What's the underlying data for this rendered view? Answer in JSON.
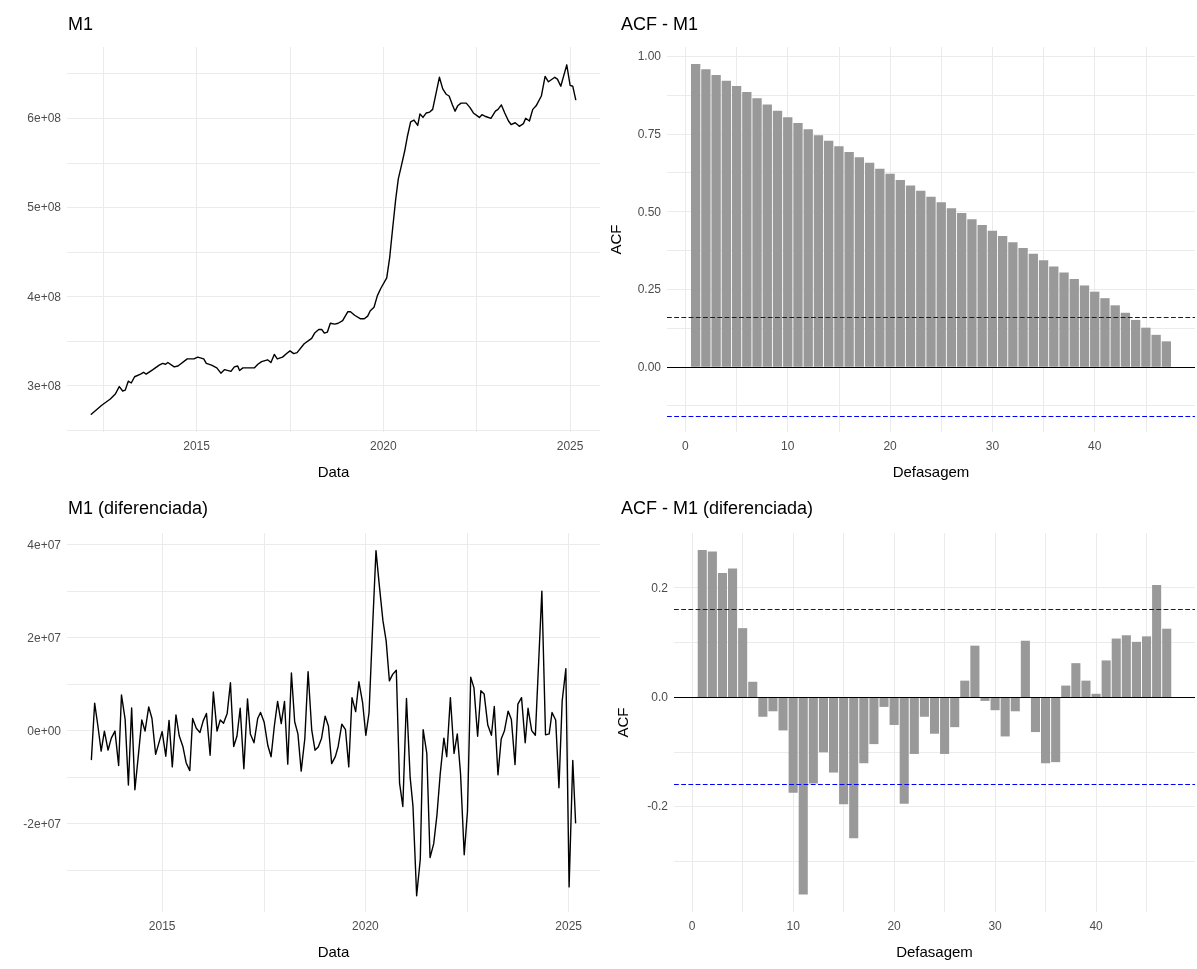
{
  "chart_data": [
    {
      "type": "line",
      "title": "M1",
      "xlabel": "Data",
      "color": "#000000",
      "grid": true,
      "xlim": [
        2011.53,
        2025.8
      ],
      "xticks": [
        {
          "value": 2012.5,
          "label": null
        },
        2015,
        {
          "value": 2017.5,
          "label": null
        },
        2020,
        {
          "value": 2022.5,
          "label": null
        },
        2025
      ],
      "ylim": [
        248000000.0,
        680000000.0
      ],
      "yticks": [
        {
          "value": 250000000.0,
          "label": null
        },
        {
          "value": 300000000.0,
          "label": "3e+08"
        },
        {
          "value": 350000000.0,
          "label": null
        },
        {
          "value": 400000000.0,
          "label": "4e+08"
        },
        {
          "value": 450000000.0,
          "label": null
        },
        {
          "value": 500000000.0,
          "label": "5e+08"
        },
        {
          "value": 550000000.0,
          "label": null
        },
        {
          "value": 600000000.0,
          "label": "6e+08"
        },
        {
          "value": 650000000.0,
          "label": null
        }
      ],
      "x": [
        2012.18,
        2012.46,
        2012.69,
        2012.83,
        2012.93,
        2013.02,
        2013.09,
        2013.17,
        2013.25,
        2013.34,
        2013.5,
        2013.58,
        2013.65,
        2013.83,
        2014.0,
        2014.09,
        2014.17,
        2014.23,
        2014.4,
        2014.5,
        2014.75,
        2014.93,
        2015.03,
        2015.19,
        2015.26,
        2015.4,
        2015.54,
        2015.65,
        2015.75,
        2015.92,
        2016.01,
        2016.1,
        2016.15,
        2016.24,
        2016.55,
        2016.64,
        2016.74,
        2016.9,
        2016.99,
        2017.08,
        2017.16,
        2017.3,
        2017.41,
        2017.5,
        2017.6,
        2017.69,
        2017.88,
        2018.08,
        2018.16,
        2018.27,
        2018.35,
        2018.42,
        2018.5,
        2018.58,
        2018.7,
        2018.79,
        2018.91,
        2019.05,
        2019.12,
        2019.23,
        2019.39,
        2019.49,
        2019.58,
        2019.65,
        2019.75,
        2019.84,
        2019.93,
        2020.09,
        2020.17,
        2020.24,
        2020.33,
        2020.4,
        2020.5,
        2020.57,
        2020.64,
        2020.73,
        2020.82,
        2020.92,
        2020.98,
        2021.06,
        2021.15,
        2021.24,
        2021.32,
        2021.5,
        2021.59,
        2021.68,
        2021.76,
        2021.85,
        2021.92,
        2021.99,
        2022.08,
        2022.22,
        2022.32,
        2022.41,
        2022.57,
        2022.64,
        2022.74,
        2022.88,
        2023.0,
        2023.07,
        2023.16,
        2023.25,
        2023.35,
        2023.42,
        2023.53,
        2023.64,
        2023.75,
        2023.81,
        2023.91,
        2024.0,
        2024.09,
        2024.23,
        2024.33,
        2024.42,
        2024.59,
        2024.66,
        2024.75,
        2024.91,
        2025.0,
        2025.07,
        2025.15
      ],
      "values": [
        268000000.0,
        278000000.0,
        285000000.0,
        291000000.0,
        299000000.0,
        294000000.0,
        295000000.0,
        305000000.0,
        303000000.0,
        310000000.0,
        313000000.0,
        315000000.0,
        313000000.0,
        318000000.0,
        323000000.0,
        325000000.0,
        324000000.0,
        326000000.0,
        321000000.0,
        322000000.0,
        330000000.0,
        330000000.0,
        332000000.0,
        330000000.0,
        325000000.0,
        323000000.0,
        320000000.0,
        314000000.0,
        318000000.0,
        316000000.0,
        321000000.0,
        322000000.0,
        317000000.0,
        320000000.0,
        320000000.0,
        324000000.0,
        327000000.0,
        329000000.0,
        326000000.0,
        335000000.0,
        330000000.0,
        332000000.0,
        336000000.0,
        339000000.0,
        336000000.0,
        337000000.0,
        347000000.0,
        353000000.0,
        359000000.0,
        363000000.0,
        363000000.0,
        359000000.0,
        360000000.0,
        370000000.0,
        369000000.0,
        370000000.0,
        373000000.0,
        383000000.0,
        383000000.0,
        379000000.0,
        375000000.0,
        375000000.0,
        378000000.0,
        384000000.0,
        388000000.0,
        401000000.0,
        409000000.0,
        421000000.0,
        444000000.0,
        473000000.0,
        509000000.0,
        532000000.0,
        550000000.0,
        563000000.0,
        579000000.0,
        596000000.0,
        598000000.0,
        592000000.0,
        605000000.0,
        601000000.0,
        606000000.0,
        607000000.0,
        610000000.0,
        646000000.0,
        633000000.0,
        627000000.0,
        625000000.0,
        615000000.0,
        608000000.0,
        614000000.0,
        617000000.0,
        617000000.0,
        612000000.0,
        606000000.0,
        601000000.0,
        604000000.0,
        602000000.0,
        600000000.0,
        608000000.0,
        610000000.0,
        615000000.0,
        606000000.0,
        597000000.0,
        593000000.0,
        595000000.0,
        591000000.0,
        594000000.0,
        600000000.0,
        597000000.0,
        610000000.0,
        614000000.0,
        625000000.0,
        647000000.0,
        641000000.0,
        646000000.0,
        644000000.0,
        636000000.0,
        660000000.0,
        637000000.0,
        636000000.0,
        621000000.0
      ]
    },
    {
      "type": "bar",
      "title": "ACF - M1",
      "xlabel": "Defasagem",
      "ylabel": "ACF",
      "color": "#999999",
      "grid": true,
      "xlim": [
        -1.8,
        49.8
      ],
      "xticks": [
        0,
        {
          "value": 5,
          "label": null
        },
        10,
        {
          "value": 15,
          "label": null
        },
        20,
        {
          "value": 25,
          "label": null
        },
        30,
        {
          "value": 35,
          "label": null
        },
        40,
        {
          "value": 45,
          "label": null
        }
      ],
      "ylim": [
        -0.21,
        1.03
      ],
      "yticks": [
        {
          "value": -0.125,
          "label": null
        },
        {
          "value": 0,
          "label": "0.00"
        },
        {
          "value": 0.125,
          "label": null
        },
        {
          "value": 0.25,
          "label": "0.25"
        },
        {
          "value": 0.375,
          "label": null
        },
        {
          "value": 0.5,
          "label": "0.50"
        },
        {
          "value": 0.625,
          "label": null
        },
        {
          "value": 0.75,
          "label": "0.75"
        },
        {
          "value": 0.875,
          "label": null
        },
        {
          "value": 1,
          "label": "1.00"
        }
      ],
      "x": [
        1,
        2,
        3,
        4,
        5,
        6,
        7,
        8,
        9,
        10,
        11,
        12,
        13,
        14,
        15,
        16,
        17,
        18,
        19,
        20,
        21,
        22,
        23,
        24,
        25,
        26,
        27,
        28,
        29,
        30,
        31,
        32,
        33,
        34,
        35,
        36,
        37,
        38,
        39,
        40,
        41,
        42,
        43,
        44,
        45,
        46,
        47
      ],
      "values": [
        0.975,
        0.958,
        0.94,
        0.921,
        0.904,
        0.885,
        0.865,
        0.845,
        0.825,
        0.804,
        0.785,
        0.765,
        0.746,
        0.728,
        0.71,
        0.692,
        0.675,
        0.657,
        0.638,
        0.622,
        0.602,
        0.584,
        0.567,
        0.548,
        0.53,
        0.511,
        0.495,
        0.475,
        0.457,
        0.438,
        0.421,
        0.401,
        0.383,
        0.364,
        0.343,
        0.323,
        0.304,
        0.283,
        0.262,
        0.242,
        0.221,
        0.198,
        0.174,
        0.151,
        0.126,
        0.103,
        0.082
      ],
      "ref_lines": [
        {
          "axis": "y",
          "value": 0,
          "color": "#000000",
          "line_style": "solid"
        },
        {
          "axis": "y",
          "value": 0.156,
          "color": "#0000ff",
          "line_style": "dashed"
        },
        {
          "axis": "y",
          "value": -0.156,
          "color": "#0000ff",
          "line_style": "dashed"
        }
      ]
    },
    {
      "type": "line",
      "title": "M1 (diferenciada)",
      "xlabel": "Data",
      "color": "#000000",
      "grid": true,
      "xlim": [
        2012.66,
        2025.77
      ],
      "xticks": [
        2015,
        {
          "value": 2017.5,
          "label": null
        },
        2020,
        {
          "value": 2022.5,
          "label": null
        },
        2025
      ],
      "ylim": [
        -39000000.0,
        42500000.0
      ],
      "yticks": [
        {
          "value": -30000000.0,
          "label": null
        },
        {
          "value": -20000000.0,
          "label": "-2e+07"
        },
        {
          "value": -10000000.0,
          "label": null
        },
        {
          "value": 0,
          "label": "0e+00"
        },
        {
          "value": 10000000.0,
          "label": null
        },
        {
          "value": 20000000.0,
          "label": "2e+07"
        },
        {
          "value": 30000000.0,
          "label": null
        },
        {
          "value": 40000000.0,
          "label": "4e+07"
        }
      ],
      "x": [
        2013.26,
        2013.34,
        2013.42,
        2013.5,
        2013.58,
        2013.67,
        2013.75,
        2013.84,
        2013.93,
        2014.0,
        2014.09,
        2014.17,
        2014.25,
        2014.33,
        2014.42,
        2014.5,
        2014.58,
        2014.67,
        2014.75,
        2014.84,
        2015.0,
        2015.09,
        2015.17,
        2015.25,
        2015.34,
        2015.42,
        2015.51,
        2015.59,
        2015.68,
        2015.75,
        2015.84,
        2015.93,
        2016.01,
        2016.09,
        2016.18,
        2016.26,
        2016.35,
        2016.43,
        2016.51,
        2016.6,
        2016.68,
        2016.76,
        2016.84,
        2016.92,
        2017.01,
        2017.1,
        2017.17,
        2017.26,
        2017.35,
        2017.42,
        2017.51,
        2017.6,
        2017.68,
        2017.76,
        2017.84,
        2017.93,
        2018.01,
        2018.09,
        2018.18,
        2018.26,
        2018.34,
        2018.42,
        2018.51,
        2018.59,
        2018.68,
        2018.76,
        2018.84,
        2018.92,
        2019.01,
        2019.09,
        2019.17,
        2019.26,
        2019.33,
        2019.42,
        2019.51,
        2019.59,
        2019.67,
        2019.76,
        2019.84,
        2019.93,
        2020.01,
        2020.09,
        2020.18,
        2020.26,
        2020.34,
        2020.43,
        2020.51,
        2020.59,
        2020.67,
        2020.76,
        2020.84,
        2020.92,
        2021.01,
        2021.1,
        2021.17,
        2021.26,
        2021.35,
        2021.42,
        2021.51,
        2021.59,
        2021.68,
        2021.76,
        2021.84,
        2021.93,
        2022.0,
        2022.09,
        2022.18,
        2022.26,
        2022.34,
        2022.43,
        2022.51,
        2022.59,
        2022.67,
        2022.76,
        2022.84,
        2022.92,
        2023.01,
        2023.1,
        2023.17,
        2023.26,
        2023.34,
        2023.42,
        2023.51,
        2023.59,
        2023.68,
        2023.75,
        2023.84,
        2023.93,
        2024.0,
        2024.09,
        2024.18,
        2024.34,
        2024.43,
        2024.52,
        2024.59,
        2024.68,
        2024.76,
        2024.84,
        2024.93,
        2025.01,
        2025.1,
        2025.17
      ],
      "values": [
        -6200000.0,
        5900000.0,
        1000000.0,
        -4400000.0,
        -100000.0,
        -4200000.0,
        -1600000.0,
        -100000.0,
        -7500000.0,
        7700000.0,
        2400000.0,
        -11700000.0,
        4900000.0,
        -12700000.0,
        -4900000.0,
        2300000.0,
        -100000.0,
        5100000.0,
        2600000.0,
        -5100000.0,
        -200000.0,
        -5500000.0,
        2200000.0,
        -7800000.0,
        3400000.0,
        -1100000.0,
        -3400000.0,
        -6900000.0,
        -8600000.0,
        2600000.0,
        500000.0,
        -400000.0,
        2100000.0,
        3700000.0,
        -5300000.0,
        8300000.0,
        -100000.0,
        2300000.0,
        1600000.0,
        3700000.0,
        10300000.0,
        -3400000.0,
        -1200000.0,
        4800000.0,
        -8200000.0,
        6800000.0,
        -700000.0,
        -2600000.0,
        2600000.0,
        3900000.0,
        1800000.0,
        -3200000.0,
        -5600000.0,
        1000000.0,
        6300000.0,
        1500000.0,
        6300000.0,
        -7200000.0,
        12400000.0,
        1900000.0,
        -700000.0,
        -8700000.0,
        -1700000.0,
        12700000.0,
        100000.0,
        -4200000.0,
        -3500000.0,
        -1700000.0,
        3100000.0,
        1000000.0,
        -7100000.0,
        -5600000.0,
        -3400000.0,
        1400000.0,
        200000.0,
        -7800000.0,
        7100000.0,
        4100000.0,
        10500000.0,
        6100000.0,
        -1000000.0,
        3900000.0,
        22900000.0,
        38700000.0,
        31400000.0,
        23700000.0,
        19300000.0,
        10700000.0,
        12100000.0,
        13000000.0,
        -11300000.0,
        -16300000.0,
        6900000.0,
        -10000000.0,
        -16300000.0,
        -35500000.0,
        -27600000.0,
        200000.0,
        -4900000.0,
        -27300000.0,
        -24300000.0,
        -18100000.0,
        -9300000.0,
        -1600000.0,
        -5600000.0,
        7100000.0,
        -4900000.0,
        -700000.0,
        -9300000.0,
        -26700000.0,
        -17400000.0,
        11500000.0,
        9200000.0,
        -1200000.0,
        8600000.0,
        7900000.0,
        1200000.0,
        -1000000.0,
        5200000.0,
        -9500000.0,
        -1800000.0,
        0,
        4200000.0,
        2400000.0,
        -7300000.0,
        5700000.0,
        7100000.0,
        -2600000.0,
        4800000.0,
        0,
        -1000000.0,
        30000000.0,
        -900000.0,
        -700000.0,
        3900000.0,
        2300000.0,
        -12300000.0,
        6400000.0,
        13300000.0,
        -33600000.0,
        -6400000.0,
        -19800000.0
      ]
    },
    {
      "type": "bar",
      "title": "ACF - M1 (diferenciada)",
      "xlabel": "Defasagem",
      "ylabel": "ACF",
      "color": "#999999",
      "grid": true,
      "xlim": [
        -1.8,
        49.8
      ],
      "xticks": [
        0,
        {
          "value": 5,
          "label": null
        },
        10,
        {
          "value": 15,
          "label": null
        },
        20,
        {
          "value": 25,
          "label": null
        },
        30,
        {
          "value": 35,
          "label": null
        },
        40,
        {
          "value": 45,
          "label": null
        }
      ],
      "ylim": [
        -0.393,
        0.3
      ],
      "yticks": [
        {
          "value": -0.3,
          "label": null
        },
        {
          "value": -0.2,
          "label": "-0.2"
        },
        {
          "value": -0.1,
          "label": null
        },
        {
          "value": 0,
          "label": "0.0"
        },
        {
          "value": 0.1,
          "label": null
        },
        {
          "value": 0.2,
          "label": "0.2"
        }
      ],
      "x": [
        1,
        2,
        3,
        4,
        5,
        6,
        7,
        8,
        9,
        10,
        11,
        12,
        13,
        14,
        15,
        16,
        17,
        18,
        19,
        20,
        21,
        22,
        23,
        24,
        25,
        26,
        27,
        28,
        29,
        30,
        31,
        32,
        33,
        34,
        35,
        36,
        37,
        38,
        39,
        40,
        41,
        42,
        43,
        44,
        45,
        46,
        47
      ],
      "values": [
        0.269,
        0.266,
        0.227,
        0.235,
        0.126,
        0.028,
        -0.036,
        -0.026,
        -0.061,
        -0.175,
        -0.361,
        -0.158,
        -0.101,
        -0.138,
        -0.196,
        -0.258,
        -0.121,
        -0.086,
        -0.018,
        -0.051,
        -0.195,
        -0.104,
        -0.036,
        -0.067,
        -0.104,
        -0.055,
        0.03,
        0.094,
        -0.007,
        -0.024,
        -0.072,
        -0.026,
        0.103,
        -0.064,
        -0.121,
        -0.119,
        0.021,
        0.062,
        0.03,
        0.006,
        0.067,
        0.107,
        0.113,
        0.101,
        0.111,
        0.205,
        0.125
      ],
      "ref_lines": [
        {
          "axis": "y",
          "value": 0,
          "color": "#000000",
          "line_style": "solid"
        },
        {
          "axis": "y",
          "value": 0.16,
          "color": "#0000ff",
          "line_style": "dashed"
        },
        {
          "axis": "y",
          "value": -0.16,
          "color": "#0000ff",
          "line_style": "dashed"
        }
      ]
    }
  ]
}
